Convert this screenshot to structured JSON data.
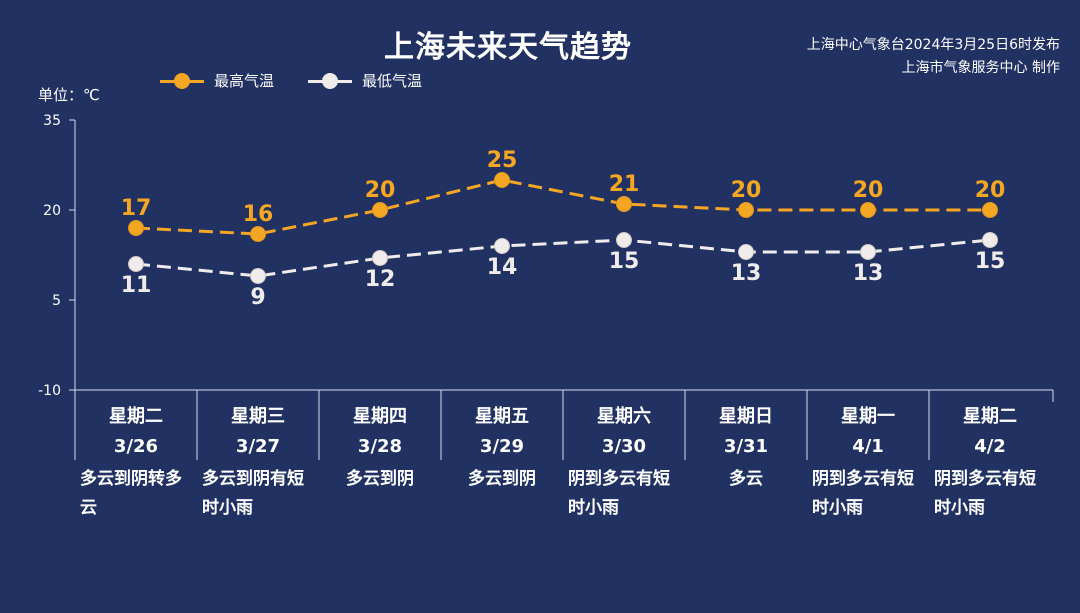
{
  "title": "上海未来天气趋势",
  "source_lines": [
    "上海中心气象台2024年3月25日6时发布",
    "上海市气象服务中心 制作"
  ],
  "unit_label": "单位：℃",
  "colors": {
    "high": "#f5a623",
    "low": "#f1ecec",
    "background": "#213162",
    "axis": "#d8dce8"
  },
  "chart_data": {
    "type": "line",
    "title": "上海未来天气趋势",
    "ylabel": "单位：℃",
    "ylim": [
      -10,
      35
    ],
    "yticks": [
      -10,
      5,
      20,
      35
    ],
    "grid": false,
    "legend": "top-left",
    "x_weekdays": [
      "星期二",
      "星期三",
      "星期四",
      "星期五",
      "星期六",
      "星期日",
      "星期一",
      "星期二"
    ],
    "x_dates": [
      "3/26",
      "3/27",
      "3/28",
      "3/29",
      "3/30",
      "3/31",
      "4/1",
      "4/2"
    ],
    "weather": [
      "多云到阴转多云",
      "多云到阴有短时小雨",
      "多云到阴",
      "多云到阴",
      "阴到多云有短时小雨",
      "多云",
      "阴到多云有短时小雨",
      "阴到多云有短时小雨"
    ],
    "series": [
      {
        "name": "最高气温",
        "values": [
          17,
          16,
          20,
          25,
          21,
          20,
          20,
          20
        ]
      },
      {
        "name": "最低气温",
        "values": [
          11,
          9,
          12,
          14,
          15,
          13,
          13,
          15
        ]
      }
    ]
  }
}
